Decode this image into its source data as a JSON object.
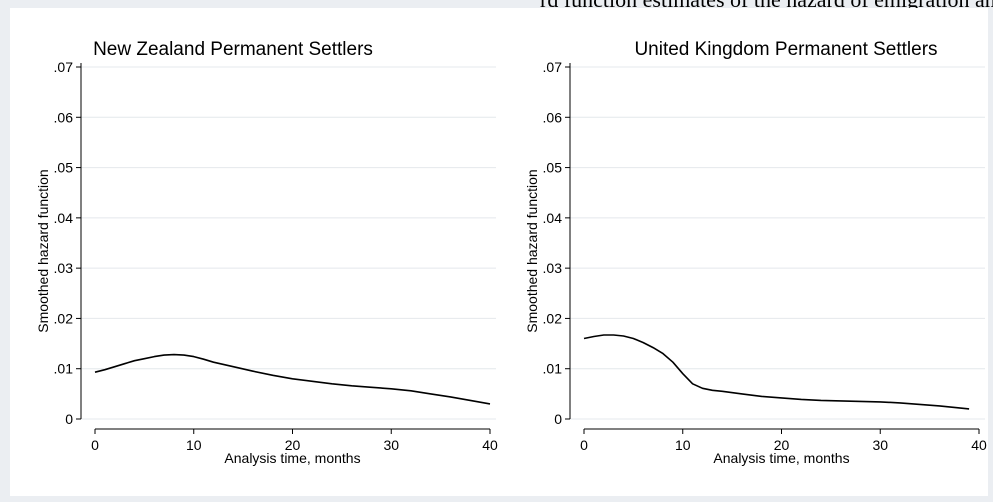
{
  "header_fragment": "rd function estimates of the hazard of emigration among permanent immigrants",
  "chart_data": [
    {
      "type": "line",
      "title": "New Zealand Permanent Settlers",
      "xlabel": "Analysis time, months",
      "ylabel": "Smoothed hazard function",
      "xlim": [
        0,
        40
      ],
      "ylim": [
        0,
        0.07
      ],
      "xticks": [
        0,
        10,
        20,
        30,
        40
      ],
      "xtick_labels": [
        "0",
        "10",
        "20",
        "30",
        "40"
      ],
      "yticks": [
        0,
        0.01,
        0.02,
        0.03,
        0.04,
        0.05,
        0.06,
        0.07
      ],
      "ytick_labels": [
        "0",
        ".01",
        ".02",
        ".03",
        ".04",
        ".05",
        ".06",
        ".07"
      ],
      "grid": true,
      "x": [
        0,
        1,
        2,
        3,
        4,
        5,
        6,
        7,
        8,
        9,
        10,
        11,
        12,
        14,
        16,
        18,
        20,
        22,
        24,
        26,
        28,
        30,
        32,
        34,
        36,
        38,
        40
      ],
      "y": [
        0.0093,
        0.0098,
        0.0104,
        0.011,
        0.0116,
        0.012,
        0.0124,
        0.0127,
        0.0128,
        0.0127,
        0.0124,
        0.0119,
        0.0113,
        0.0104,
        0.0095,
        0.0087,
        0.008,
        0.0075,
        0.007,
        0.0066,
        0.0063,
        0.006,
        0.0056,
        0.005,
        0.0044,
        0.0037,
        0.003
      ],
      "color": "#000000"
    },
    {
      "type": "line",
      "title": "United Kingdom Permanent Settlers",
      "xlabel": "Analysis time, months",
      "ylabel": "Smoothed hazard function",
      "xlim": [
        0,
        40
      ],
      "ylim": [
        0,
        0.07
      ],
      "xticks": [
        0,
        10,
        20,
        30,
        40
      ],
      "xtick_labels": [
        "0",
        "10",
        "20",
        "30",
        "40"
      ],
      "yticks": [
        0,
        0.01,
        0.02,
        0.03,
        0.04,
        0.05,
        0.06,
        0.07
      ],
      "ytick_labels": [
        "0",
        ".01",
        ".02",
        ".03",
        ".04",
        ".05",
        ".06",
        ".07"
      ],
      "grid": true,
      "x": [
        0,
        1,
        2,
        3,
        4,
        5,
        6,
        7,
        8,
        9,
        10,
        11,
        12,
        13,
        14,
        16,
        18,
        20,
        22,
        24,
        26,
        28,
        30,
        32,
        34,
        36,
        38,
        39
      ],
      "y": [
        0.016,
        0.0164,
        0.0167,
        0.0167,
        0.0165,
        0.016,
        0.0152,
        0.0142,
        0.013,
        0.0113,
        0.009,
        0.007,
        0.0061,
        0.0057,
        0.0055,
        0.005,
        0.0045,
        0.0042,
        0.0039,
        0.0037,
        0.0036,
        0.0035,
        0.0034,
        0.0032,
        0.0029,
        0.0026,
        0.0022,
        0.002
      ],
      "color": "#000000"
    }
  ]
}
